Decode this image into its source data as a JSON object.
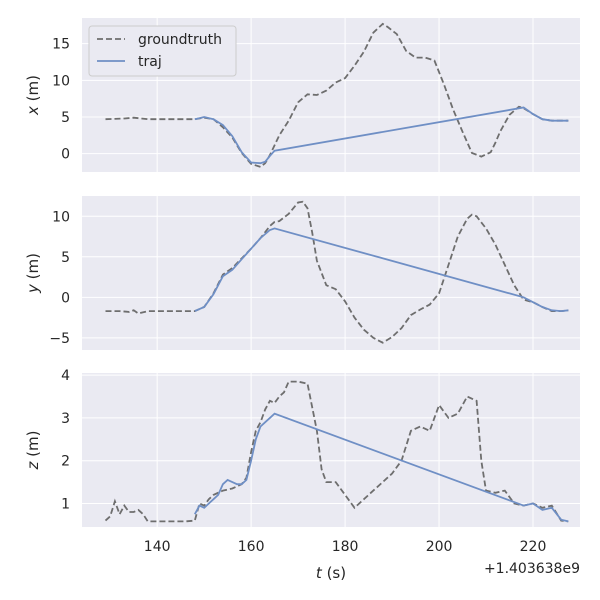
{
  "chart_data": {
    "type": "line",
    "x_offset_label": "+1.403638e9",
    "xlabel": "t (s)",
    "xlim": [
      124,
      230
    ],
    "xticks": [
      140,
      160,
      180,
      200,
      220
    ],
    "legend": {
      "placement": "top-left",
      "entries": [
        "groundtruth",
        "traj"
      ]
    },
    "colors": {
      "groundtruth": "#6e6e6e",
      "traj": "#6f8fc5",
      "background": "#eaeaf2"
    },
    "grid": true,
    "panels": [
      {
        "ylabel": "x (m)",
        "ylim": [
          -2.5,
          18.5
        ],
        "yticks": [
          0,
          5,
          10,
          15
        ],
        "series": [
          {
            "name": "groundtruth",
            "style": "dashed",
            "x": [
              129,
              133,
              135,
              138,
              142,
              148,
              150,
              152,
              154,
              156,
              158,
              160,
              162,
              163,
              164,
              166,
              168,
              170,
              172,
              174,
              176,
              178,
              180,
              182,
              184,
              186,
              188,
              189,
              191,
              193,
              195,
              197,
              199,
              201,
              203,
              205,
              207,
              209,
              211,
              212,
              213,
              215,
              217,
              218,
              220,
              222,
              224,
              226,
              227.5
            ],
            "y": [
              4.7,
              4.8,
              4.9,
              4.7,
              4.7,
              4.7,
              4.9,
              4.7,
              3.6,
              2.2,
              0.1,
              -1.4,
              -1.8,
              -1.3,
              -0.2,
              2.5,
              4.5,
              7.0,
              8.1,
              8.0,
              8.6,
              9.7,
              10.3,
              12.0,
              13.9,
              16.5,
              17.7,
              17.3,
              16.3,
              14.0,
              13.1,
              13.1,
              12.7,
              9.5,
              6.0,
              3.0,
              0.1,
              -0.4,
              0.2,
              1.5,
              3.0,
              5.3,
              6.4,
              6.2,
              5.4,
              4.7,
              4.5,
              4.5,
              4.5
            ]
          },
          {
            "name": "traj",
            "style": "solid",
            "x": [
              148,
              150,
              152,
              154,
              156,
              158,
              160,
              162,
              163,
              164,
              165,
              218,
              220,
              222,
              224,
              226,
              227.5
            ],
            "y": [
              4.7,
              5.0,
              4.7,
              3.9,
              2.4,
              0.2,
              -1.2,
              -1.3,
              -1.1,
              -0.3,
              0.4,
              6.3,
              5.4,
              4.7,
              4.5,
              4.5,
              4.5
            ]
          }
        ]
      },
      {
        "ylabel": "y (m)",
        "ylim": [
          -6.5,
          12.5
        ],
        "yticks": [
          -5,
          0,
          5,
          10
        ],
        "series": [
          {
            "name": "groundtruth",
            "style": "dashed",
            "x": [
              129,
              132,
              134,
              135,
              136,
              138,
              142,
              146,
              148,
              150,
              152,
              154,
              156,
              158,
              160,
              162,
              164,
              165,
              166,
              168,
              170,
              171,
              172,
              173,
              174,
              176,
              178,
              180,
              182,
              184,
              186,
              188,
              190,
              192,
              194,
              196,
              198,
              200,
              202,
              204,
              206,
              207,
              208,
              210,
              212,
              214,
              216,
              218,
              220,
              222,
              224,
              226,
              227.5
            ],
            "y": [
              -1.7,
              -1.7,
              -1.8,
              -1.6,
              -2.0,
              -1.7,
              -1.7,
              -1.7,
              -1.7,
              -1.2,
              0.5,
              2.8,
              3.6,
              4.8,
              6.0,
              7.3,
              8.8,
              9.3,
              9.4,
              10.3,
              11.7,
              11.8,
              11.0,
              8.0,
              4.5,
              1.5,
              1.0,
              -0.5,
              -2.5,
              -4.0,
              -5.0,
              -5.6,
              -4.9,
              -3.8,
              -2.2,
              -1.5,
              -0.9,
              0.5,
              4.0,
              7.5,
              9.7,
              10.2,
              10.0,
              8.5,
              6.5,
              4.0,
              1.5,
              -0.3,
              -0.6,
              -1.2,
              -1.7,
              -1.7,
              -1.6
            ]
          },
          {
            "name": "traj",
            "style": "solid",
            "x": [
              148,
              150,
              152,
              154,
              156,
              158,
              160,
              162,
              164,
              165,
              218,
              220,
              222,
              224,
              226,
              227.5
            ],
            "y": [
              -1.7,
              -1.2,
              0.4,
              2.6,
              3.4,
              4.7,
              6.0,
              7.3,
              8.3,
              8.5,
              0.0,
              -0.6,
              -1.2,
              -1.6,
              -1.7,
              -1.6
            ]
          }
        ]
      },
      {
        "ylabel": "z (m)",
        "ylim": [
          0.45,
          4.05
        ],
        "yticks": [
          1,
          2,
          3,
          4
        ],
        "series": [
          {
            "name": "groundtruth",
            "style": "dashed",
            "x": [
              129,
              130,
              131,
              132,
              133,
              134,
              135,
              136,
              137,
              138,
              140,
              142,
              146,
              148,
              149,
              150,
              151,
              152,
              154,
              156,
              158,
              159,
              160,
              161,
              162,
              163,
              164,
              165,
              166,
              167,
              168,
              170,
              172,
              174,
              175,
              176,
              178,
              180,
              182,
              183,
              184,
              186,
              188,
              190,
              192,
              194,
              196,
              198,
              200,
              202,
              204,
              206,
              207,
              208,
              209,
              210,
              212,
              214,
              216,
              218,
              220,
              222,
              224,
              226,
              227.5
            ],
            "y": [
              0.6,
              0.7,
              1.05,
              0.75,
              0.95,
              0.8,
              0.8,
              0.85,
              0.75,
              0.58,
              0.58,
              0.58,
              0.58,
              0.6,
              1.0,
              0.95,
              1.1,
              1.2,
              1.3,
              1.35,
              1.45,
              1.6,
              2.2,
              2.7,
              2.9,
              3.2,
              3.4,
              3.35,
              3.5,
              3.6,
              3.85,
              3.85,
              3.8,
              2.7,
              1.8,
              1.5,
              1.5,
              1.2,
              0.9,
              1.0,
              1.1,
              1.3,
              1.5,
              1.7,
              2.0,
              2.7,
              2.8,
              2.7,
              3.3,
              3.0,
              3.1,
              3.5,
              3.45,
              3.4,
              2.0,
              1.3,
              1.25,
              1.3,
              1.0,
              0.95,
              1.0,
              0.9,
              0.95,
              0.6,
              0.58
            ]
          },
          {
            "name": "traj",
            "style": "solid",
            "x": [
              148,
              149,
              150,
              151,
              152,
              153,
              154,
              155,
              156,
              157,
              158,
              159,
              160,
              161,
              162,
              163,
              164,
              165,
              218,
              220,
              222,
              224,
              226,
              227.5
            ],
            "y": [
              0.75,
              0.95,
              0.9,
              1.0,
              1.1,
              1.2,
              1.45,
              1.55,
              1.5,
              1.45,
              1.45,
              1.55,
              2.0,
              2.5,
              2.8,
              2.9,
              3.0,
              3.1,
              0.95,
              1.0,
              0.85,
              0.9,
              0.62,
              0.58
            ]
          }
        ]
      }
    ]
  }
}
